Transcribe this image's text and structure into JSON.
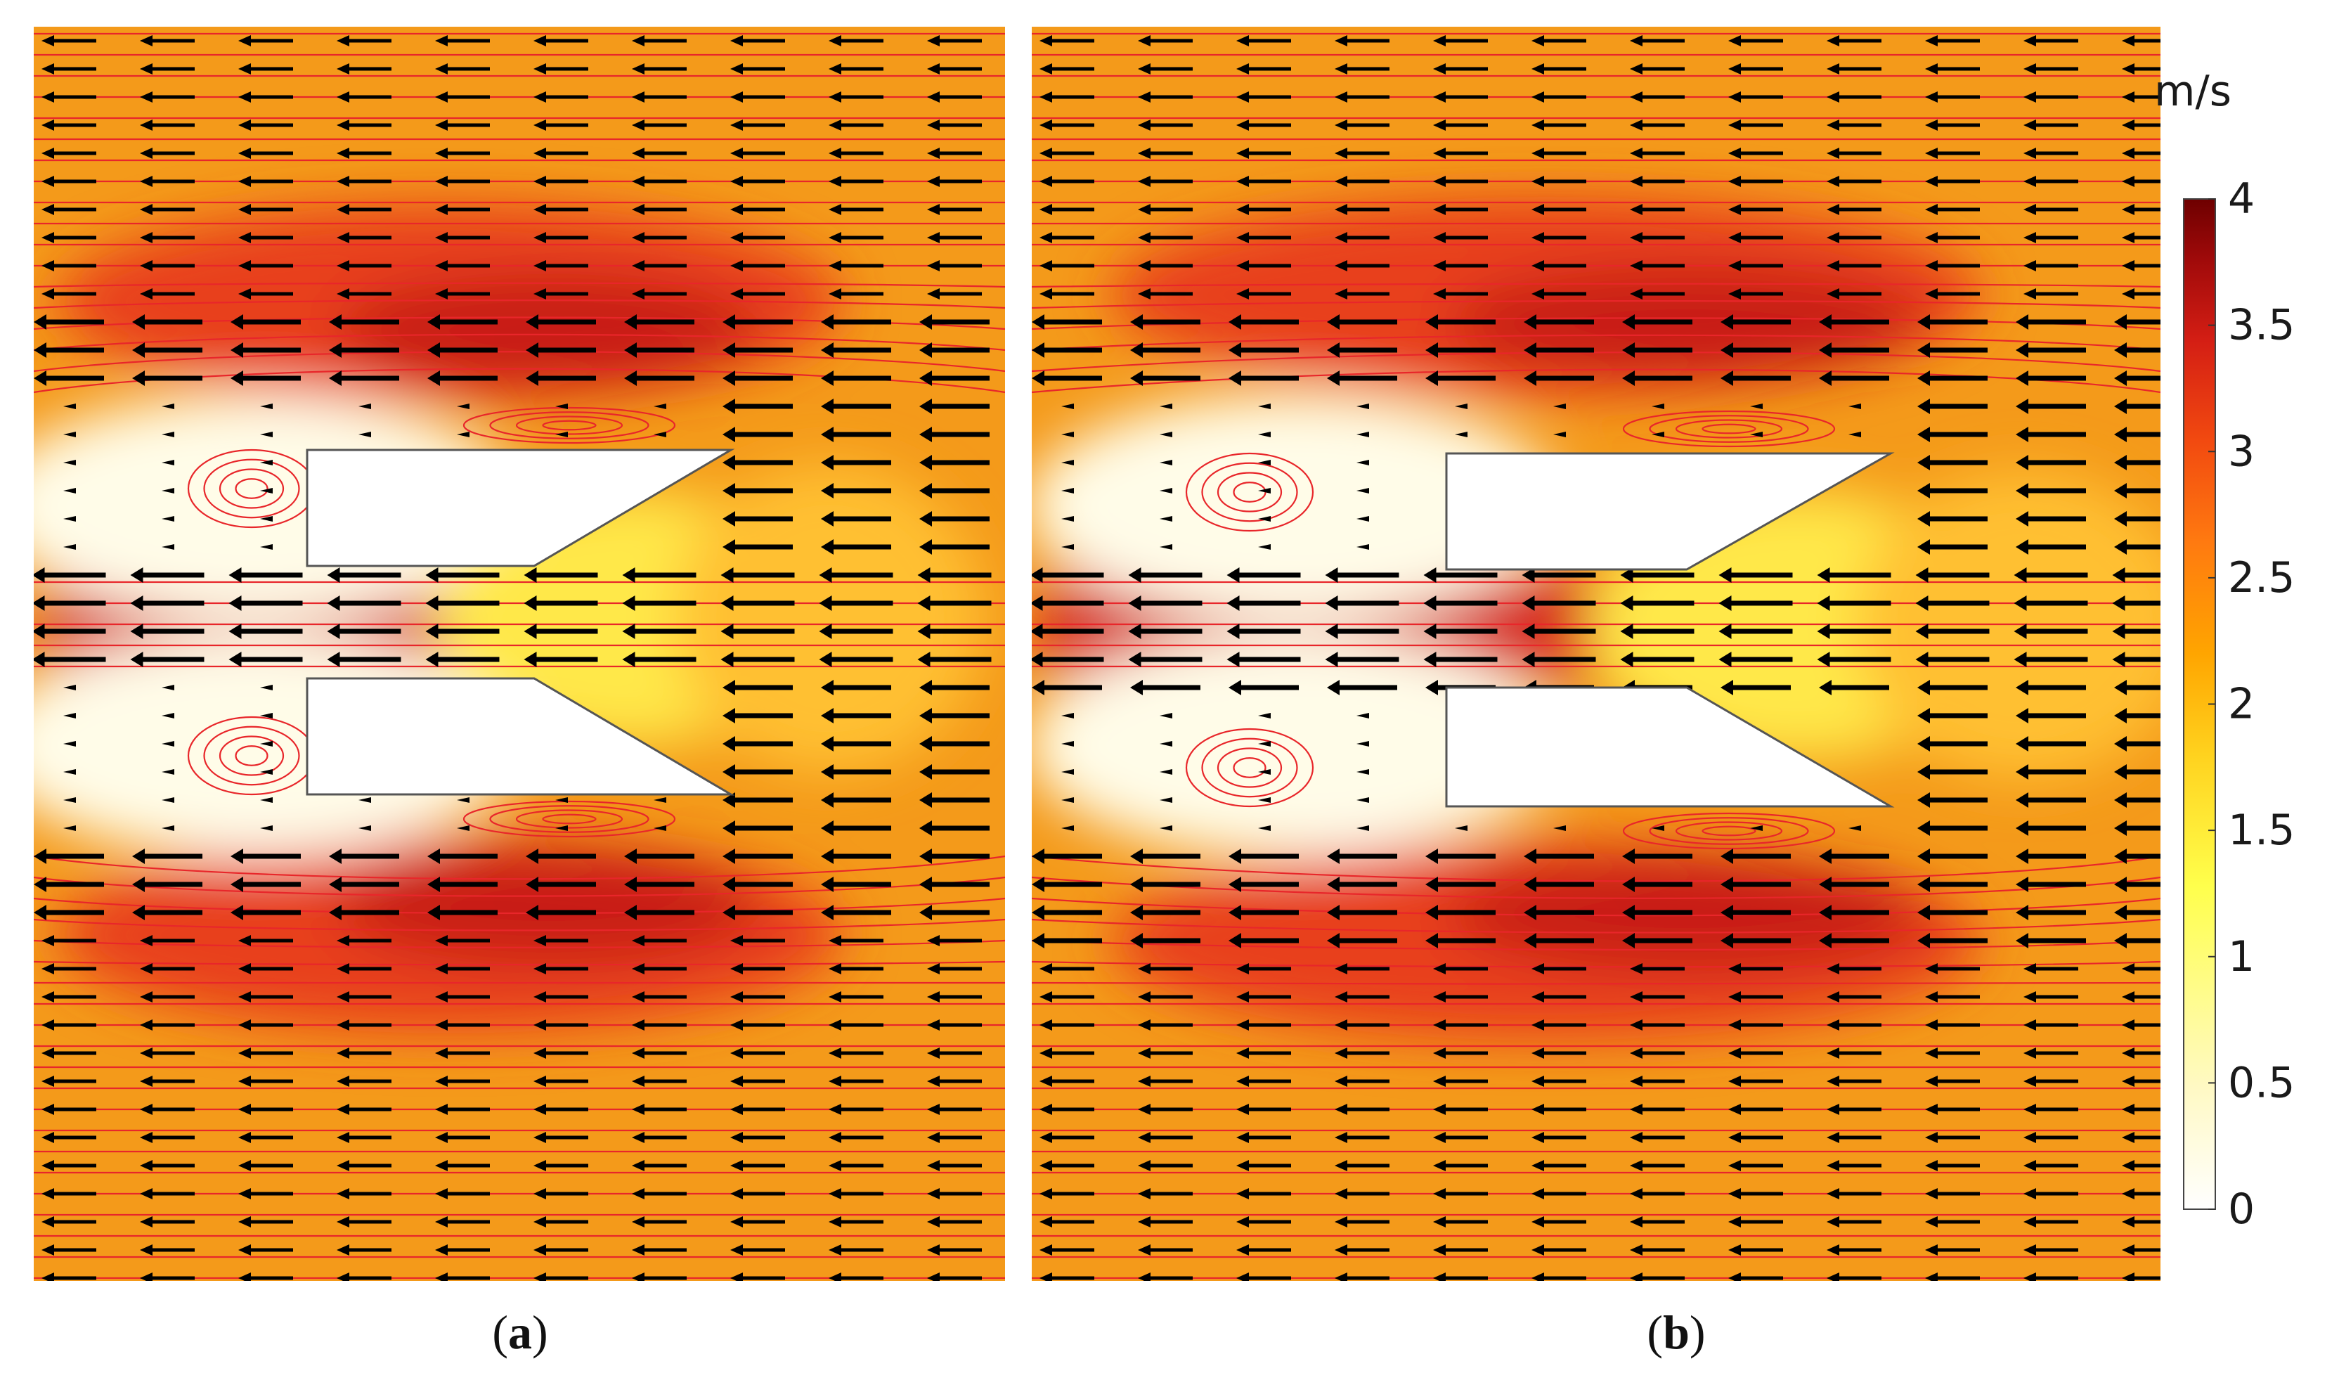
{
  "figure": {
    "panels": [
      {
        "label": "(a)",
        "label_letter": "a"
      },
      {
        "label": "(b)",
        "label_letter": "b"
      }
    ],
    "colorbar": {
      "unit": "m/s",
      "min": 0,
      "max": 4,
      "ticks": [
        "4",
        "3.5",
        "3",
        "2.5",
        "2",
        "1.5",
        "1",
        "0.5",
        "0"
      ],
      "colormap": [
        "#ffffff",
        "#fff9c4",
        "#ffff4c",
        "#ffd21e",
        "#ffa500",
        "#ff7a10",
        "#f24a10",
        "#d41e14",
        "#a00a0a",
        "#6e0000"
      ]
    },
    "colors": {
      "streamline": "#e8262a",
      "arrow": "#000000",
      "obstacle": "#ffffff",
      "obstacle_edge": "#555555"
    }
  }
}
